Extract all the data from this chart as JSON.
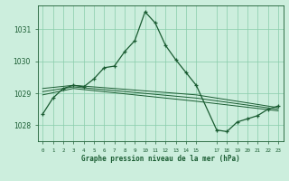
{
  "title": "Graphe pression niveau de la mer (hPa)",
  "background_color": "#cceedd",
  "grid_color": "#88ccaa",
  "line_color": "#1a5c32",
  "text_color": "#1a5c32",
  "xlim": [
    -0.5,
    23.5
  ],
  "ylim": [
    1027.5,
    1031.75
  ],
  "yticks": [
    1028,
    1029,
    1030,
    1031
  ],
  "xticks": [
    0,
    1,
    2,
    3,
    4,
    5,
    6,
    7,
    8,
    9,
    10,
    11,
    12,
    13,
    14,
    15,
    17,
    18,
    19,
    20,
    21,
    22,
    23
  ],
  "series_main": {
    "x": [
      0,
      1,
      2,
      3,
      4,
      5,
      6,
      7,
      8,
      9,
      10,
      11,
      12,
      13,
      14,
      15,
      17,
      18,
      19,
      20,
      21,
      22,
      23
    ],
    "y": [
      1028.35,
      1028.85,
      1029.15,
      1029.25,
      1029.2,
      1029.45,
      1029.8,
      1029.85,
      1030.3,
      1030.65,
      1031.55,
      1031.2,
      1030.5,
      1030.05,
      1029.65,
      1029.25,
      1027.85,
      1027.8,
      1028.1,
      1028.2,
      1028.3,
      1028.5,
      1028.6
    ]
  },
  "series_flat1": {
    "x": [
      0,
      3,
      15,
      23
    ],
    "y": [
      1029.15,
      1029.25,
      1028.95,
      1028.55
    ]
  },
  "series_flat2": {
    "x": [
      0,
      3,
      15,
      23
    ],
    "y": [
      1029.05,
      1029.2,
      1028.85,
      1028.5
    ]
  },
  "series_flat3": {
    "x": [
      0,
      3,
      15,
      23
    ],
    "y": [
      1028.95,
      1029.15,
      1028.75,
      1028.45
    ]
  }
}
